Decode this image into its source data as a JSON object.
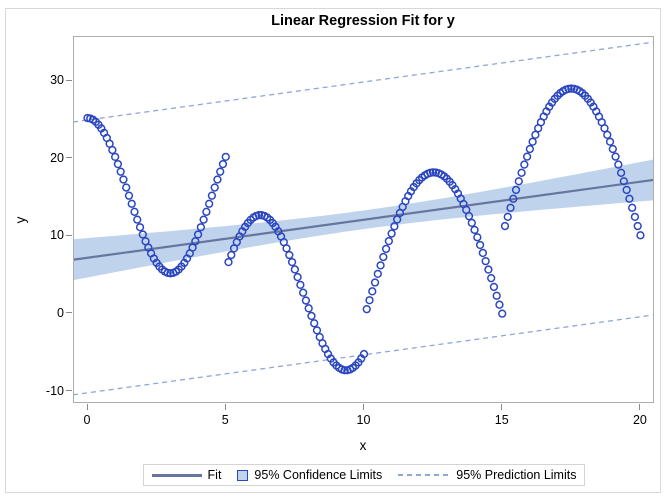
{
  "title": "Linear Regression Fit for y",
  "axes": {
    "x": {
      "label": "x",
      "ticks": [
        0,
        5,
        10,
        15,
        20
      ],
      "view_min": -0.5245,
      "view_max": 20.49
    },
    "y": {
      "label": "y",
      "ticks": [
        -10,
        0,
        10,
        20,
        30
      ],
      "view_min": -11.61,
      "view_max": 35.67
    }
  },
  "chart_data": {
    "type": "scatter",
    "title": "Linear Regression Fit for y",
    "xlabel": "x",
    "ylabel": "y",
    "xlim": [
      -0.5245,
      20.49
    ],
    "ylim": [
      -11.61,
      35.67
    ],
    "grid": false,
    "legend_position": "bottom-center",
    "x_step": 0.1,
    "marker": "open-circle",
    "scatter_segments": [
      {
        "x_start": 0.0,
        "x_end": 5.0,
        "midline": 15.1,
        "amplitude": 10.0,
        "period": 6.0,
        "phase_x": 0.0
      },
      {
        "x_start": 5.1,
        "x_end": 10.0,
        "midline": 2.6,
        "amplitude": 10.0,
        "period": 6.2,
        "phase_x": 6.25
      },
      {
        "x_start": 10.1,
        "x_end": 15.0,
        "midline": -0.1,
        "amplitude": 18.2,
        "period": 9.9,
        "phase_x": 12.525
      },
      {
        "x_start": 15.1,
        "x_end": 20.0,
        "midline": 10.0,
        "amplitude": 18.9,
        "period": 10.0,
        "phase_x": 17.5
      }
    ],
    "key_points": [
      [
        0,
        25.1
      ],
      [
        3,
        5.1
      ],
      [
        5,
        20.1
      ],
      [
        5.1,
        7.0
      ],
      [
        6.25,
        12.6
      ],
      [
        9.35,
        -7.4
      ],
      [
        10,
        -5.2
      ],
      [
        10.1,
        0.4
      ],
      [
        12.5,
        18.1
      ],
      [
        15,
        -0.1
      ],
      [
        15.1,
        11.2
      ],
      [
        17.5,
        28.9
      ],
      [
        20,
        10.7
      ]
    ],
    "fit": {
      "intercept": 7.1,
      "slope": 0.49
    },
    "confidence_band": {
      "level": "95%",
      "halfwidth_a": 1.44,
      "halfwidth_b": 0.05,
      "halfwidth_xc": 10
    },
    "prediction": {
      "level": "95%",
      "slope": 0.49,
      "upper_intercept": 24.85,
      "lower_intercept": -10.3
    }
  },
  "legend": {
    "items": [
      {
        "label": "Fit",
        "swatch": "line"
      },
      {
        "label": "95% Confidence Limits",
        "swatch": "box"
      },
      {
        "label": "95% Prediction Limits",
        "swatch": "dashed-line"
      }
    ]
  },
  "colors": {
    "marker": "#2a46c0",
    "band": "#c0d3ec",
    "fit_line": "#66769e",
    "prediction_line": "#8ea6d8",
    "frame": "#adadad",
    "tick": "#8a8a8a",
    "outer_border": "#d8d8d8",
    "legend_border": "#d4d4d4",
    "text": "#000000"
  }
}
